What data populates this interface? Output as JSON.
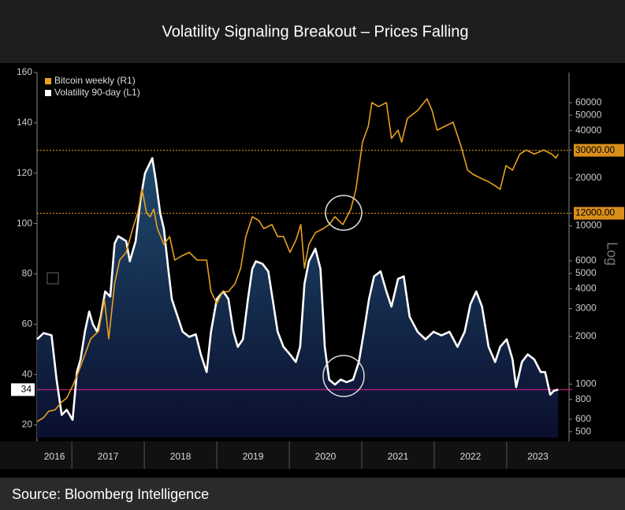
{
  "chart_data": {
    "type": "line",
    "title": "Volatility Signaling Breakout – Prices Falling",
    "source": "Source: Bloomberg Intelligence",
    "y2_label": "Log",
    "legend": "upper left",
    "xlim": [
      2016.52,
      2023.86
    ],
    "xticks": [
      2017,
      2018,
      2019,
      2020,
      2021,
      2022,
      2023
    ],
    "x_labels": [
      "2016",
      "2017",
      "2018",
      "2019",
      "2020",
      "2021",
      "2022",
      "2023"
    ],
    "ylim": [
      15,
      160
    ],
    "yticks": [
      20,
      40,
      60,
      80,
      100,
      120,
      140,
      160
    ],
    "y2lim": [
      460,
      93000
    ],
    "y2log": true,
    "y2ticks": [
      500,
      600,
      800,
      1000,
      2000,
      3000,
      4000,
      5000,
      6000,
      10000,
      20000,
      40000,
      50000,
      60000
    ],
    "hlines": [
      {
        "value": 30000,
        "label": "30000.00",
        "axis": "y2",
        "color": "#d98e1c"
      },
      {
        "value": 12000,
        "label": "12000.00",
        "axis": "y2",
        "color": "#d98e1c"
      },
      {
        "value": 34,
        "axis": "y",
        "color": "#d0208a"
      }
    ],
    "series": [
      {
        "name": "Bitcoin weekly (R1)",
        "color": "#e8a020",
        "axis": "y2",
        "x": [
          2016.52,
          2016.61,
          2016.68,
          2016.77,
          2016.86,
          2016.93,
          2017.01,
          2017.1,
          2017.18,
          2017.26,
          2017.37,
          2017.45,
          2017.51,
          2017.59,
          2017.66,
          2017.75,
          2017.84,
          2017.91,
          2017.97,
          2018.03,
          2018.08,
          2018.13,
          2018.18,
          2018.27,
          2018.35,
          2018.42,
          2018.51,
          2018.62,
          2018.73,
          2018.86,
          2018.92,
          2019.0,
          2019.08,
          2019.16,
          2019.25,
          2019.33,
          2019.4,
          2019.49,
          2019.58,
          2019.65,
          2019.76,
          2019.84,
          2019.92,
          2020.01,
          2020.09,
          2020.16,
          2020.21,
          2020.27,
          2020.36,
          2020.47,
          2020.55,
          2020.63,
          2020.74,
          2020.85,
          2020.92,
          2021.01,
          2021.09,
          2021.14,
          2021.23,
          2021.34,
          2021.41,
          2021.5,
          2021.55,
          2021.63,
          2021.77,
          2021.9,
          2021.97,
          2022.04,
          2022.15,
          2022.26,
          2022.37,
          2022.46,
          2022.53,
          2022.64,
          2022.75,
          2022.84,
          2022.91,
          2022.99,
          2023.08,
          2023.18,
          2023.27,
          2023.38,
          2023.51,
          2023.62,
          2023.68,
          2023.71
        ],
        "values": [
          580,
          614,
          673,
          688,
          771,
          817,
          970,
          1220,
          1535,
          1932,
          2163,
          3420,
          1932,
          4300,
          6070,
          6800,
          9600,
          12080,
          17000,
          12080,
          11410,
          12770,
          9600,
          7630,
          8550,
          6070,
          6430,
          6800,
          6070,
          6070,
          3840,
          3230,
          3840,
          3840,
          4300,
          5410,
          8550,
          11410,
          10800,
          9600,
          10180,
          8550,
          8550,
          6800,
          8090,
          10180,
          5410,
          7630,
          9050,
          9600,
          10180,
          11410,
          10180,
          12770,
          17000,
          33800,
          42600,
          60000,
          56700,
          60000,
          35700,
          40200,
          33800,
          47700,
          53500,
          63500,
          53500,
          40200,
          42600,
          45100,
          31800,
          22500,
          21200,
          20000,
          19000,
          17900,
          17000,
          24000,
          22500,
          28400,
          30100,
          28400,
          30100,
          28400,
          26800,
          28400
        ]
      },
      {
        "name": "Volatility 90-day (L1)",
        "color": "#ffffff",
        "axis": "y",
        "x": [
          2016.52,
          2016.61,
          2016.72,
          2016.79,
          2016.86,
          2016.93,
          2017.01,
          2017.07,
          2017.12,
          2017.18,
          2017.24,
          2017.29,
          2017.35,
          2017.4,
          2017.46,
          2017.53,
          2017.59,
          2017.64,
          2017.75,
          2017.8,
          2017.88,
          2017.95,
          2018.01,
          2018.11,
          2018.16,
          2018.22,
          2018.27,
          2018.33,
          2018.38,
          2018.46,
          2018.53,
          2018.62,
          2018.71,
          2018.78,
          2018.86,
          2018.92,
          2019.0,
          2019.09,
          2019.16,
          2019.23,
          2019.29,
          2019.36,
          2019.43,
          2019.49,
          2019.54,
          2019.63,
          2019.71,
          2019.77,
          2019.84,
          2019.92,
          2020.01,
          2020.09,
          2020.15,
          2020.21,
          2020.27,
          2020.36,
          2020.43,
          2020.49,
          2020.55,
          2020.63,
          2020.71,
          2020.79,
          2020.88,
          2020.96,
          2021.03,
          2021.1,
          2021.17,
          2021.26,
          2021.34,
          2021.41,
          2021.5,
          2021.58,
          2021.66,
          2021.77,
          2021.88,
          2021.99,
          2022.1,
          2022.21,
          2022.32,
          2022.42,
          2022.5,
          2022.58,
          2022.66,
          2022.75,
          2022.84,
          2022.91,
          2023.0,
          2023.08,
          2023.13,
          2023.21,
          2023.29,
          2023.38,
          2023.47,
          2023.53,
          2023.6,
          2023.65,
          2023.71
        ],
        "values": [
          54,
          56.5,
          55.6,
          38,
          24,
          26,
          22,
          41,
          46,
          57,
          65,
          60,
          57,
          63,
          73,
          71,
          92,
          95,
          93,
          85,
          93,
          110,
          120,
          126,
          117,
          104,
          98,
          82,
          70,
          63,
          57,
          55,
          56,
          48,
          41,
          57,
          70,
          73,
          70,
          57,
          51,
          54,
          70,
          82,
          85,
          84,
          81,
          70,
          57,
          51,
          48,
          45,
          51,
          76,
          85,
          90,
          82,
          51,
          38,
          36,
          38,
          37,
          38,
          45,
          57,
          70,
          79,
          81,
          73,
          67,
          78,
          79,
          63,
          57,
          54,
          57,
          55.6,
          57,
          51,
          57,
          68,
          73,
          67,
          51,
          45,
          51,
          54,
          46,
          35,
          45,
          48,
          46,
          41,
          41,
          32,
          33.5,
          34
        ]
      }
    ]
  }
}
